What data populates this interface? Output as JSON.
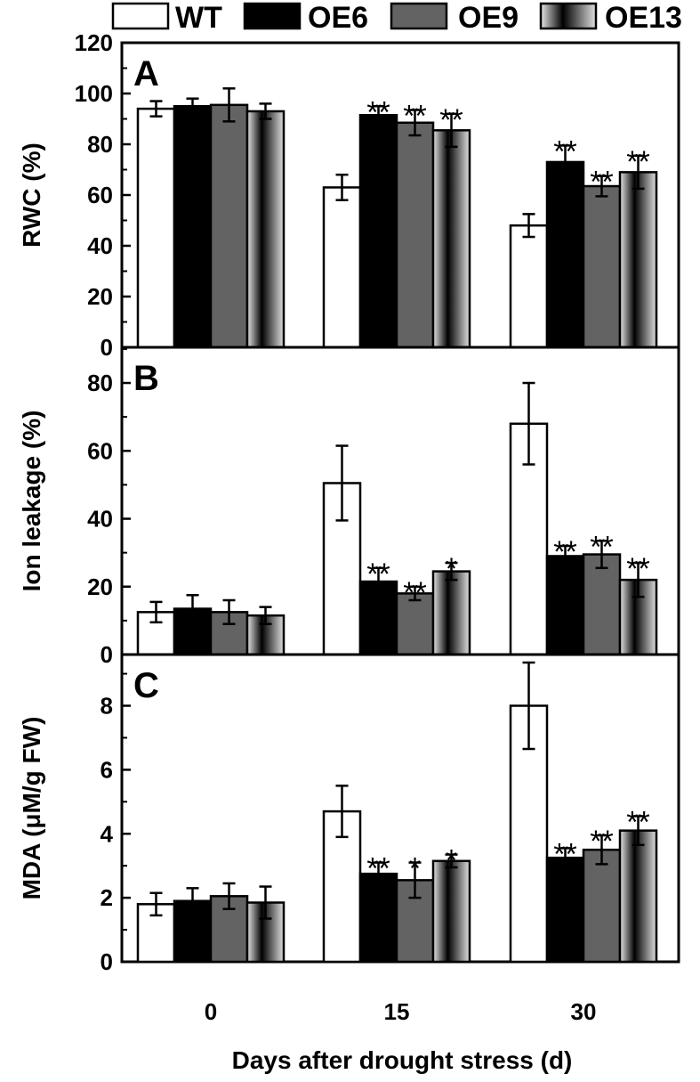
{
  "chart_data": {
    "type": "bar",
    "x_title": "Days after drought stress (d)",
    "categories": [
      "0",
      "15",
      "30"
    ],
    "legend": {
      "placement": "top",
      "entries": [
        "WT",
        "OE6",
        "OE9",
        "OE13"
      ]
    },
    "colors": {
      "WT": "#ffffff",
      "OE6": "#000000",
      "OE9": "#636363",
      "OE13": "gradient"
    },
    "panels": [
      {
        "label": "A",
        "ylabel": "RWC (%)",
        "ylim": [
          0,
          120
        ],
        "yticks": [
          "0",
          "20",
          "40",
          "60",
          "80",
          "100",
          "120"
        ],
        "series": [
          {
            "name": "WT",
            "values": [
              94,
              63,
              48
            ],
            "errors": [
              3,
              5,
              4.5
            ],
            "signif": [
              "",
              "",
              ""
            ]
          },
          {
            "name": "OE6",
            "values": [
              95,
              91.5,
              73
            ],
            "errors": [
              3,
              3.5,
              6.5
            ],
            "signif": [
              "",
              "**",
              "**"
            ]
          },
          {
            "name": "OE9",
            "values": [
              95.5,
              88.5,
              63.5
            ],
            "errors": [
              6.5,
              5,
              4
            ],
            "signif": [
              "",
              "**",
              "**"
            ]
          },
          {
            "name": "OE13",
            "values": [
              93,
              85.5,
              69
            ],
            "errors": [
              3,
              6.5,
              6.5
            ],
            "signif": [
              "",
              "**",
              "**"
            ]
          }
        ]
      },
      {
        "label": "B",
        "ylabel": "Ion leakage (%)",
        "ylim": [
          0,
          90.5
        ],
        "yticks": [
          "0",
          "20",
          "40",
          "60",
          "80"
        ],
        "series": [
          {
            "name": "WT",
            "values": [
              12.5,
              50.5,
              68
            ],
            "errors": [
              3,
              11,
              12
            ],
            "signif": [
              "",
              "",
              ""
            ]
          },
          {
            "name": "OE6",
            "values": [
              13.5,
              21.5,
              29
            ],
            "errors": [
              4,
              4,
              3
            ],
            "signif": [
              "",
              "**",
              "**"
            ]
          },
          {
            "name": "OE9",
            "values": [
              12.5,
              18,
              29.5
            ],
            "errors": [
              3.5,
              2,
              4
            ],
            "signif": [
              "",
              "**",
              "**"
            ]
          },
          {
            "name": "OE13",
            "values": [
              11.5,
              24.5,
              22
            ],
            "errors": [
              2.5,
              2.5,
              5
            ],
            "signif": [
              "",
              "*",
              "**"
            ]
          }
        ]
      },
      {
        "label": "C",
        "ylabel": "MDA (μM/g FW)",
        "ylim": [
          0,
          9.6
        ],
        "yticks": [
          "0",
          "2",
          "4",
          "6",
          "8"
        ],
        "series": [
          {
            "name": "WT",
            "values": [
              1.8,
              4.7,
              8.0
            ],
            "errors": [
              0.35,
              0.8,
              1.35
            ],
            "signif": [
              "",
              "",
              ""
            ]
          },
          {
            "name": "OE6",
            "values": [
              1.9,
              2.75,
              3.25
            ],
            "errors": [
              0.4,
              0.35,
              0.3
            ],
            "signif": [
              "",
              "**",
              "**"
            ]
          },
          {
            "name": "OE9",
            "values": [
              2.05,
              2.55,
              3.5
            ],
            "errors": [
              0.4,
              0.55,
              0.45
            ],
            "signif": [
              "",
              "*",
              "**"
            ]
          },
          {
            "name": "OE13",
            "values": [
              1.85,
              3.15,
              4.1
            ],
            "errors": [
              0.5,
              0.2,
              0.45
            ],
            "signif": [
              "",
              "*",
              "**"
            ]
          }
        ]
      }
    ]
  }
}
